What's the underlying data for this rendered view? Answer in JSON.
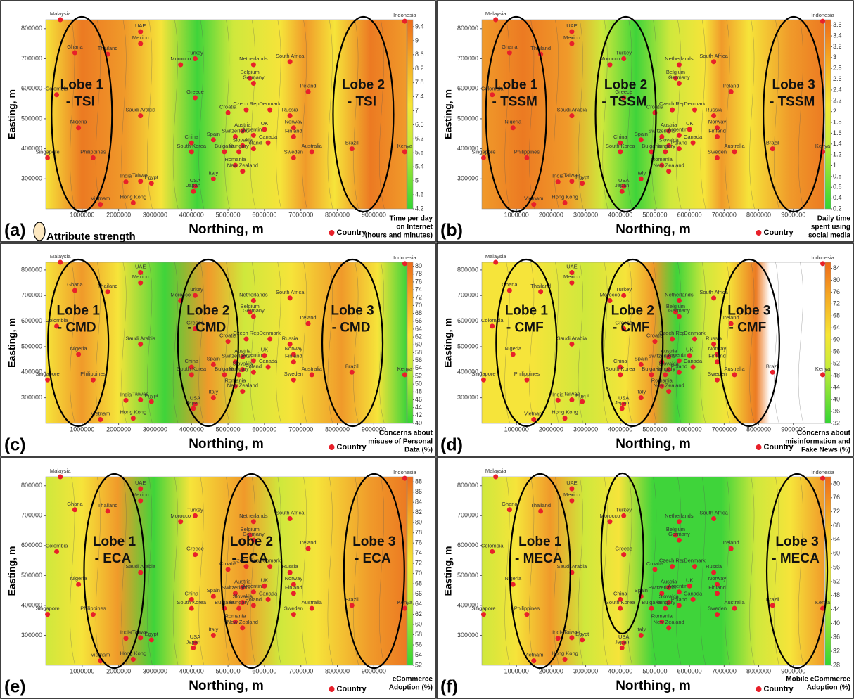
{
  "chart_data": [
    {
      "type": "contour",
      "panel_label": "(a)",
      "xlabel": "Northing, m",
      "ylabel": "Easting, m",
      "xlim": [
        0,
        9900000
      ],
      "ylim": [
        200000,
        830000
      ],
      "xticks": [
        1000000,
        2000000,
        3000000,
        4000000,
        5000000,
        6000000,
        7000000,
        8000000,
        9000000
      ],
      "yticks": [
        300000,
        400000,
        500000,
        600000,
        700000,
        800000
      ],
      "lobes": [
        [
          "Lobe 1",
          "- TSI"
        ],
        [
          "Lobe 2",
          "- TSI"
        ]
      ],
      "colorbar_label": [
        "Time per day",
        "on Internet",
        "(hours and minutes)"
      ],
      "clim": [
        4.2,
        9.6
      ],
      "cticks": [
        4.2,
        4.6,
        5,
        5.4,
        5.8,
        6.2,
        6.6,
        7,
        7.4,
        7.8,
        8.2,
        8.6,
        9,
        9.4
      ]
    },
    {
      "type": "contour",
      "panel_label": "(b)",
      "xlabel": "Northing, m",
      "ylabel": "Easting, m",
      "xlim": [
        0,
        9900000
      ],
      "ylim": [
        200000,
        830000
      ],
      "xticks": [
        1000000,
        2000000,
        3000000,
        4000000,
        5000000,
        6000000,
        7000000,
        8000000,
        9000000
      ],
      "yticks": [
        300000,
        400000,
        500000,
        600000,
        700000,
        800000
      ],
      "lobes": [
        [
          "Lobe 1",
          "- TSSM"
        ],
        [
          "Lobe 2",
          "- TSSM"
        ],
        [
          "Lobe 3",
          "- TSSM"
        ]
      ],
      "colorbar_label": [
        "Daily time",
        "spent using",
        "social media"
      ],
      "clim": [
        0.2,
        3.7
      ],
      "cticks": [
        0.2,
        0.4,
        0.6,
        0.8,
        1,
        1.2,
        1.4,
        1.6,
        1.8,
        2,
        2.2,
        2.4,
        2.6,
        2.8,
        3,
        3.2,
        3.4,
        3.6
      ]
    },
    {
      "type": "contour",
      "panel_label": "(c)",
      "xlabel": "Northing,  m",
      "ylabel": "Easting, m",
      "xlim": [
        0,
        9900000
      ],
      "ylim": [
        200000,
        830000
      ],
      "xticks": [
        1000000,
        2000000,
        3000000,
        4000000,
        5000000,
        6000000,
        7000000,
        8000000,
        9000000
      ],
      "yticks": [
        300000,
        400000,
        500000,
        600000,
        700000,
        800000
      ],
      "lobes": [
        [
          "Lobe 1",
          "- CMD"
        ],
        [
          "Lobe 2",
          "- CMD"
        ],
        [
          "Lobe 3",
          "- CMD"
        ]
      ],
      "colorbar_label": [
        "Concerns about",
        "misuse of Personal",
        "Data (%)"
      ],
      "clim": [
        40,
        81
      ],
      "cticks": [
        40,
        42,
        44,
        46,
        48,
        50,
        52,
        54,
        56,
        58,
        60,
        62,
        64,
        66,
        68,
        70,
        72,
        74,
        76,
        78,
        80
      ]
    },
    {
      "type": "contour",
      "panel_label": "(d)",
      "xlabel": "Northing, m",
      "ylabel": "Easting, m",
      "xlim": [
        0,
        9900000
      ],
      "ylim": [
        200000,
        830000
      ],
      "xticks": [
        1000000,
        2000000,
        3000000,
        4000000,
        5000000,
        6000000,
        7000000,
        8000000,
        9000000
      ],
      "yticks": [
        300000,
        400000,
        500000,
        600000,
        700000,
        800000
      ],
      "lobes": [
        [
          "Lobe 1",
          "- CMF"
        ],
        [
          "Lobe 2",
          "- CMF"
        ],
        [
          "Lobe 3",
          "- CMF"
        ]
      ],
      "colorbar_label": [
        "Concerns about",
        "misinformation and",
        "Fake News (%)"
      ],
      "clim": [
        32,
        86
      ],
      "cticks": [
        32,
        36,
        40,
        44,
        48,
        52,
        56,
        60,
        64,
        68,
        72,
        76,
        80,
        84
      ]
    },
    {
      "type": "contour",
      "panel_label": "(e)",
      "xlabel": "Northing, m",
      "ylabel": "Easting, m",
      "xlim": [
        0,
        9900000
      ],
      "ylim": [
        200000,
        830000
      ],
      "xticks": [
        1000000,
        2000000,
        3000000,
        4000000,
        5000000,
        6000000,
        7000000,
        8000000,
        9000000
      ],
      "yticks": [
        300000,
        400000,
        500000,
        600000,
        700000,
        800000
      ],
      "lobes": [
        [
          "Lobe 1",
          "- ECA"
        ],
        [
          "Lobe 2",
          "- ECA"
        ],
        [
          "Lobe 3",
          "- ECA"
        ]
      ],
      "colorbar_label": [
        "eCommerce",
        "Adoption (%)"
      ],
      "clim": [
        52,
        89
      ],
      "cticks": [
        52,
        54,
        56,
        58,
        60,
        62,
        64,
        66,
        68,
        70,
        72,
        74,
        76,
        78,
        80,
        82,
        84,
        86,
        88
      ]
    },
    {
      "type": "contour",
      "panel_label": "(f)",
      "xlabel": "Northing, m",
      "ylabel": "Easting, m",
      "xlim": [
        0,
        9900000
      ],
      "ylim": [
        200000,
        830000
      ],
      "xticks": [
        1000000,
        2000000,
        3000000,
        4000000,
        5000000,
        6000000,
        7000000,
        8000000,
        9000000
      ],
      "yticks": [
        300000,
        400000,
        500000,
        600000,
        700000,
        800000
      ],
      "lobes": [
        [
          "Lobe 1",
          "- MECA"
        ],
        [
          "Lobe 3",
          "- MECA"
        ]
      ],
      "colorbar_label": [
        "Mobile eCommerce",
        "Adoption (%)"
      ],
      "clim": [
        28,
        82
      ],
      "cticks": [
        28,
        32,
        36,
        40,
        44,
        48,
        52,
        56,
        60,
        64,
        68,
        72,
        76,
        80
      ]
    }
  ],
  "country_legend": "Country",
  "attribute_legend": "Attribute strength",
  "countries": [
    {
      "name": "Malaysia",
      "x": 400000,
      "y": 830000
    },
    {
      "name": "Indonesia",
      "x": 9850000,
      "y": 825000
    },
    {
      "name": "Ghana",
      "x": 800000,
      "y": 720000
    },
    {
      "name": "Thailand",
      "x": 1700000,
      "y": 715000
    },
    {
      "name": "Colombia",
      "x": 300000,
      "y": 580000
    },
    {
      "name": "Nigeria",
      "x": 900000,
      "y": 470000
    },
    {
      "name": "Philippines",
      "x": 1300000,
      "y": 370000
    },
    {
      "name": "Singapore",
      "x": 50000,
      "y": 370000
    },
    {
      "name": "Vietnam",
      "x": 1500000,
      "y": 215000
    },
    {
      "name": "Hong Kong",
      "x": 2400000,
      "y": 220000
    },
    {
      "name": "UAE",
      "x": 2600000,
      "y": 790000
    },
    {
      "name": "Mexico",
      "x": 2600000,
      "y": 750000
    },
    {
      "name": "Saudi Arabia",
      "x": 2600000,
      "y": 510000
    },
    {
      "name": "India",
      "x": 2200000,
      "y": 290000
    },
    {
      "name": "Taiwan",
      "x": 2600000,
      "y": 292000
    },
    {
      "name": "Egypt",
      "x": 2900000,
      "y": 285000
    },
    {
      "name": "Morocco",
      "x": 3700000,
      "y": 680000
    },
    {
      "name": "Turkey",
      "x": 4100000,
      "y": 700000
    },
    {
      "name": "Greece",
      "x": 4100000,
      "y": 570000
    },
    {
      "name": "China",
      "x": 4000000,
      "y": 420000
    },
    {
      "name": "South Korea",
      "x": 4000000,
      "y": 390000
    },
    {
      "name": "USA",
      "x": 4100000,
      "y": 275000
    },
    {
      "name": "Japan",
      "x": 4050000,
      "y": 258000
    },
    {
      "name": "Spain",
      "x": 4600000,
      "y": 430000
    },
    {
      "name": "Italy",
      "x": 4600000,
      "y": 300000
    },
    {
      "name": "Croatia",
      "x": 5000000,
      "y": 520000
    },
    {
      "name": "Austria",
      "x": 5400000,
      "y": 460000
    },
    {
      "name": "Switzerland",
      "x": 5200000,
      "y": 440000
    },
    {
      "name": "Slovakia",
      "x": 5400000,
      "y": 410000
    },
    {
      "name": "Hungary",
      "x": 5300000,
      "y": 390000
    },
    {
      "name": "Bulgaria",
      "x": 4900000,
      "y": 390000
    },
    {
      "name": "Romania",
      "x": 5200000,
      "y": 345000
    },
    {
      "name": "New Zealand",
      "x": 5400000,
      "y": 325000
    },
    {
      "name": "Netherlands",
      "x": 5700000,
      "y": 680000
    },
    {
      "name": "Belgium",
      "x": 5600000,
      "y": 635000
    },
    {
      "name": "Germany",
      "x": 5700000,
      "y": 618000
    },
    {
      "name": "Czech Rep",
      "x": 5500000,
      "y": 530000
    },
    {
      "name": "Argentina",
      "x": 5700000,
      "y": 445000
    },
    {
      "name": "Poland",
      "x": 5700000,
      "y": 400000
    },
    {
      "name": "UK",
      "x": 6000000,
      "y": 465000
    },
    {
      "name": "Denmark",
      "x": 6150000,
      "y": 530000
    },
    {
      "name": "Canada",
      "x": 6100000,
      "y": 420000
    },
    {
      "name": "South Africa",
      "x": 6700000,
      "y": 690000
    },
    {
      "name": "Russia",
      "x": 6700000,
      "y": 510000
    },
    {
      "name": "Norway",
      "x": 6800000,
      "y": 470000
    },
    {
      "name": "Finland",
      "x": 6800000,
      "y": 440000
    },
    {
      "name": "Sweden",
      "x": 6800000,
      "y": 370000
    },
    {
      "name": "Ireland",
      "x": 7200000,
      "y": 590000
    },
    {
      "name": "Australia",
      "x": 7300000,
      "y": 390000
    },
    {
      "name": "Brazil",
      "x": 8400000,
      "y": 400000
    },
    {
      "name": "Kenya",
      "x": 9850000,
      "y": 390000
    }
  ]
}
